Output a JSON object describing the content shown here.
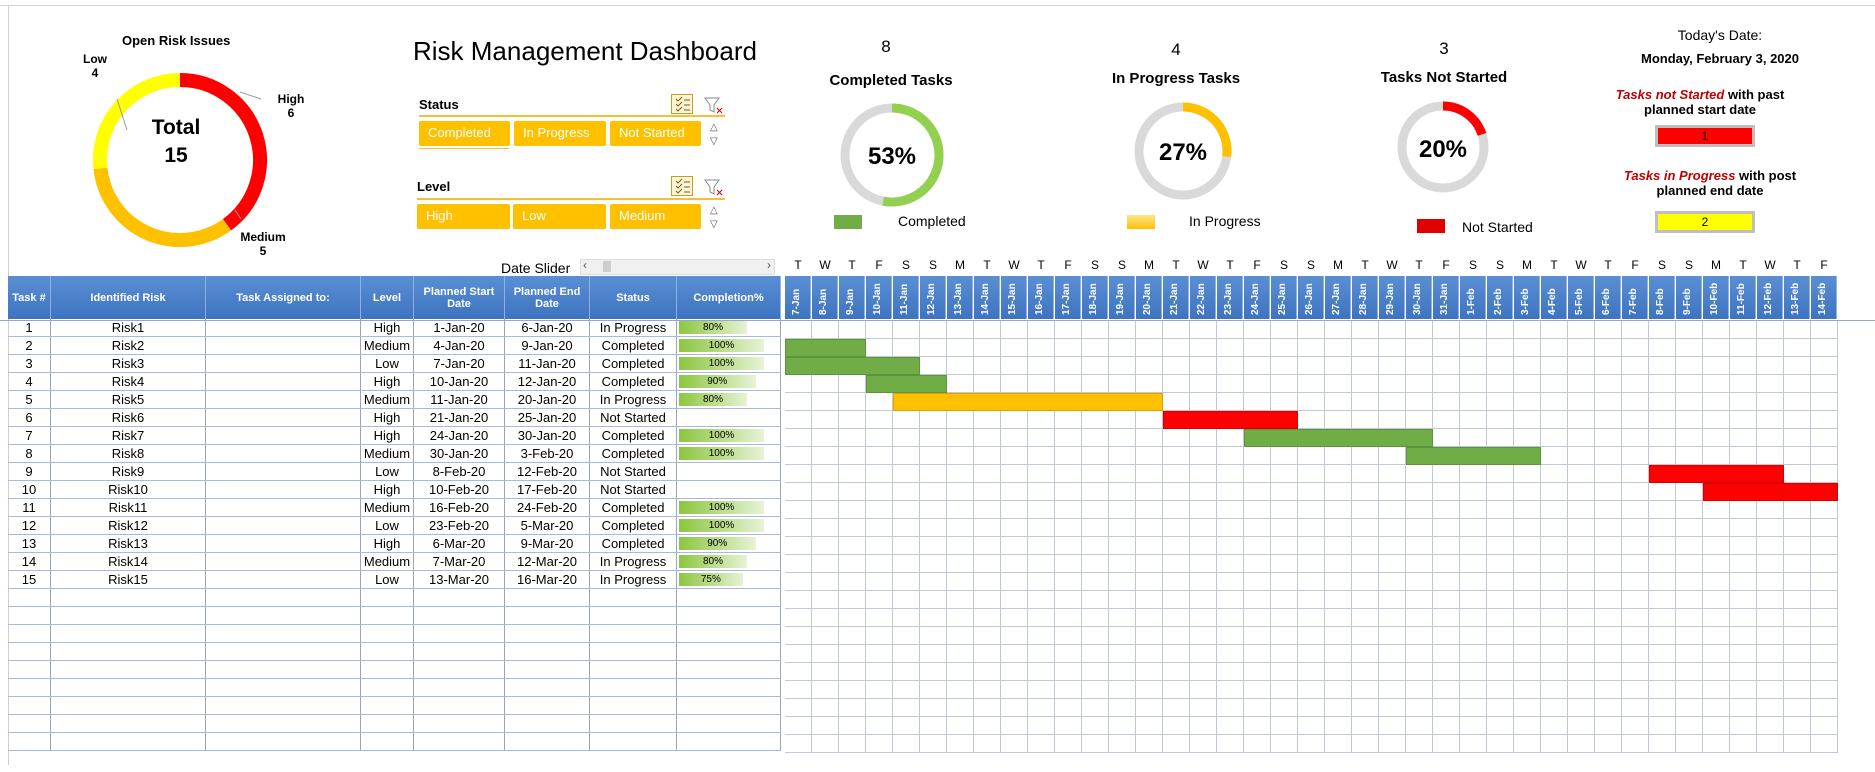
{
  "donut": {
    "title": "Open Risk Issues",
    "center_label": "Total",
    "center_value": "15",
    "segments": [
      {
        "name": "High",
        "value": "6",
        "color": "#ff0000"
      },
      {
        "name": "Medium",
        "value": "5",
        "color": "#ffc000"
      },
      {
        "name": "Low",
        "value": "4",
        "color": "#ffff00"
      }
    ]
  },
  "dashboard_title": "Risk Management Dashboard",
  "slicers": {
    "status": {
      "title": "Status",
      "options": [
        "Completed",
        "In Progress",
        "Not Started"
      ]
    },
    "level": {
      "title": "Level",
      "options": [
        "High",
        "Low",
        "Medium"
      ]
    }
  },
  "kpis": [
    {
      "count": "8",
      "title": "Completed Tasks",
      "pct": "53%",
      "fraction": 0.53,
      "legend": "Completed",
      "color": "#92d050"
    },
    {
      "count": "4",
      "title": "In Progress Tasks",
      "pct": "27%",
      "fraction": 0.27,
      "legend": "In Progress",
      "color": "#ffc000"
    },
    {
      "count": "3",
      "title": "Tasks Not Started",
      "pct": "20%",
      "fraction": 0.2,
      "legend": "Not Started",
      "color": "#ff0000"
    }
  ],
  "today": {
    "label": "Today's Date:",
    "value": "Monday, February 3, 2020"
  },
  "warnings": [
    {
      "italic": "Tasks not Started",
      "text": " with past",
      "line2": "planned start date",
      "value": "1",
      "color": "#ff0000"
    },
    {
      "italic": "Tasks in Progress",
      "text": " with post",
      "line2": "planned end date",
      "value": "2",
      "color": "#ffff00"
    }
  ],
  "date_slider": "Date Slider",
  "table": {
    "headers": [
      "Task #",
      "Identified Risk",
      "Task Assigned to:",
      "Level",
      "Planned Start Date",
      "Planned End Date",
      "Status",
      "Completion%"
    ],
    "rows": [
      [
        "1",
        "Risk1",
        "",
        "High",
        "1-Jan-20",
        "6-Jan-20",
        "In Progress",
        "80%"
      ],
      [
        "2",
        "Risk2",
        "",
        "Medium",
        "4-Jan-20",
        "9-Jan-20",
        "Completed",
        "100%"
      ],
      [
        "3",
        "Risk3",
        "",
        "Low",
        "7-Jan-20",
        "11-Jan-20",
        "Completed",
        "100%"
      ],
      [
        "4",
        "Risk4",
        "",
        "High",
        "10-Jan-20",
        "12-Jan-20",
        "Completed",
        "90%"
      ],
      [
        "5",
        "Risk5",
        "",
        "Medium",
        "11-Jan-20",
        "20-Jan-20",
        "In Progress",
        "80%"
      ],
      [
        "6",
        "Risk6",
        "",
        "High",
        "21-Jan-20",
        "25-Jan-20",
        "Not Started",
        ""
      ],
      [
        "7",
        "Risk7",
        "",
        "High",
        "24-Jan-20",
        "30-Jan-20",
        "Completed",
        "100%"
      ],
      [
        "8",
        "Risk8",
        "",
        "Medium",
        "30-Jan-20",
        "3-Feb-20",
        "Completed",
        "100%"
      ],
      [
        "9",
        "Risk9",
        "",
        "Low",
        "8-Feb-20",
        "12-Feb-20",
        "Not Started",
        ""
      ],
      [
        "10",
        "Risk10",
        "",
        "High",
        "10-Feb-20",
        "17-Feb-20",
        "Not Started",
        ""
      ],
      [
        "11",
        "Risk11",
        "",
        "Medium",
        "16-Feb-20",
        "24-Feb-20",
        "Completed",
        "100%"
      ],
      [
        "12",
        "Risk12",
        "",
        "Low",
        "23-Feb-20",
        "5-Mar-20",
        "Completed",
        "100%"
      ],
      [
        "13",
        "Risk13",
        "",
        "High",
        "6-Mar-20",
        "9-Mar-20",
        "Completed",
        "90%"
      ],
      [
        "14",
        "Risk14",
        "",
        "Medium",
        "7-Mar-20",
        "12-Mar-20",
        "In Progress",
        "80%"
      ],
      [
        "15",
        "Risk15",
        "",
        "Low",
        "13-Mar-20",
        "16-Mar-20",
        "In Progress",
        "75%"
      ]
    ]
  },
  "gantt": {
    "weekdays": [
      "T",
      "W",
      "T",
      "F",
      "S",
      "S",
      "M",
      "T",
      "W",
      "T",
      "F",
      "S",
      "S",
      "M",
      "T",
      "W",
      "T",
      "F",
      "S",
      "S",
      "M",
      "T",
      "W",
      "T",
      "F",
      "S",
      "S",
      "M",
      "T",
      "W",
      "T",
      "F",
      "S",
      "S",
      "M",
      "T",
      "W",
      "T",
      "F"
    ],
    "dates": [
      "7-Jan",
      "8-Jan",
      "9-Jan",
      "10-Jan",
      "11-Jan",
      "12-Jan",
      "13-Jan",
      "14-Jan",
      "15-Jan",
      "16-Jan",
      "17-Jan",
      "18-Jan",
      "19-Jan",
      "20-Jan",
      "21-Jan",
      "22-Jan",
      "23-Jan",
      "24-Jan",
      "25-Jan",
      "26-Jan",
      "27-Jan",
      "28-Jan",
      "29-Jan",
      "30-Jan",
      "31-Jan",
      "1-Feb",
      "2-Feb",
      "3-Feb",
      "4-Feb",
      "5-Feb",
      "6-Feb",
      "7-Feb",
      "8-Feb",
      "9-Feb",
      "10-Feb",
      "11-Feb",
      "12-Feb",
      "13-Feb",
      "14-Feb"
    ],
    "bars": [
      {
        "row": 2,
        "from": "7-Jan",
        "to": "9-Jan",
        "color": "#70ad47"
      },
      {
        "row": 3,
        "from": "7-Jan",
        "to": "11-Jan",
        "color": "#70ad47"
      },
      {
        "row": 4,
        "from": "10-Jan",
        "to": "12-Jan",
        "color": "#70ad47"
      },
      {
        "row": 5,
        "from": "11-Jan",
        "to": "20-Jan",
        "color": "#ffc000"
      },
      {
        "row": 6,
        "from": "21-Jan",
        "to": "25-Jan",
        "color": "#ff0000"
      },
      {
        "row": 7,
        "from": "24-Jan",
        "to": "30-Jan",
        "color": "#70ad47"
      },
      {
        "row": 8,
        "from": "30-Jan",
        "to": "3-Feb",
        "color": "#70ad47"
      },
      {
        "row": 9,
        "from": "8-Feb",
        "to": "12-Feb",
        "color": "#ff0000"
      },
      {
        "row": 10,
        "from": "10-Feb",
        "to": "14-Feb",
        "color": "#ff0000"
      }
    ]
  }
}
